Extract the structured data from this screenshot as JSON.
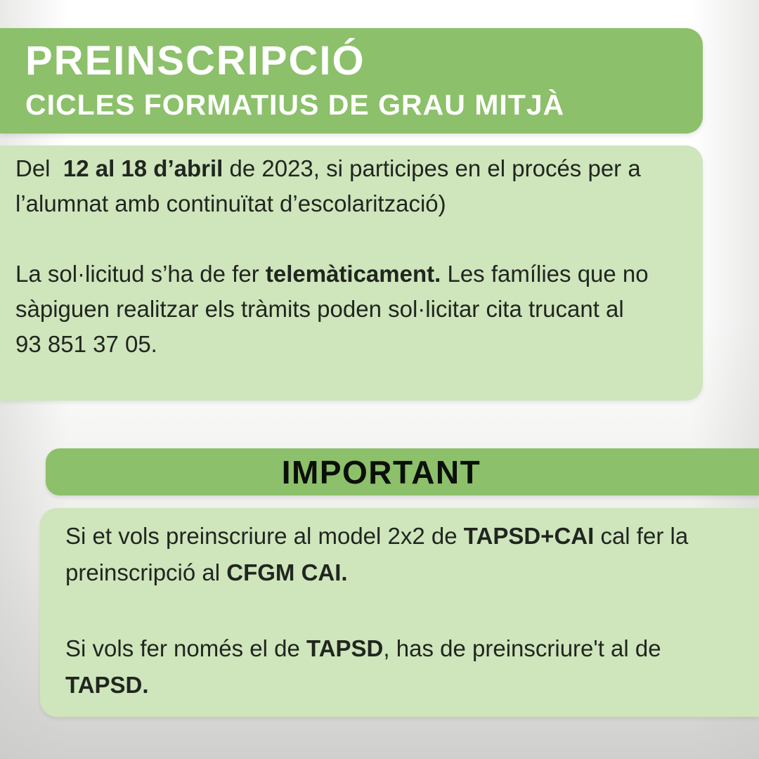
{
  "colors": {
    "band_green": "#8cc06a",
    "light_green": "#cfe5bc",
    "text_dark": "#20261f",
    "important_text": "#0b0f0a",
    "header_text": "#ffffff"
  },
  "header": {
    "title": "PREINSCRIPCIÓ",
    "subtitle": "CICLES FORMATIUS DE GRAU MITJÀ"
  },
  "info_box": {
    "paragraph_dates": {
      "s0": "Del  ",
      "s1": "12 al 18 d’abril",
      "s2": " de 2023, si participes en el procés per a l’alumnat amb continuïtat d’escolarització)"
    },
    "paragraph_telematic": {
      "s0": "La sol·licitud s’ha de fer ",
      "s1": "telemàticament.",
      "s2": " Les famílies que no sàpiguen realitzar els tràmits poden sol·licitar cita trucant al 93 851 37 05."
    }
  },
  "important": {
    "label": "IMPORTANT"
  },
  "notes_box": {
    "paragraph_tapsd_cai": {
      "s0": "Si et vols preinscriure al model 2x2 de ",
      "s1": "TAPSD+CAI",
      "s2": " cal fer la preinscripció al ",
      "s3": "CFGM CAI."
    },
    "paragraph_tapsd_only": {
      "s0": "Si vols fer només el de ",
      "s1": "TAPSD",
      "s2": ", has de preinscriure't al de ",
      "s3": "TAPSD."
    }
  }
}
